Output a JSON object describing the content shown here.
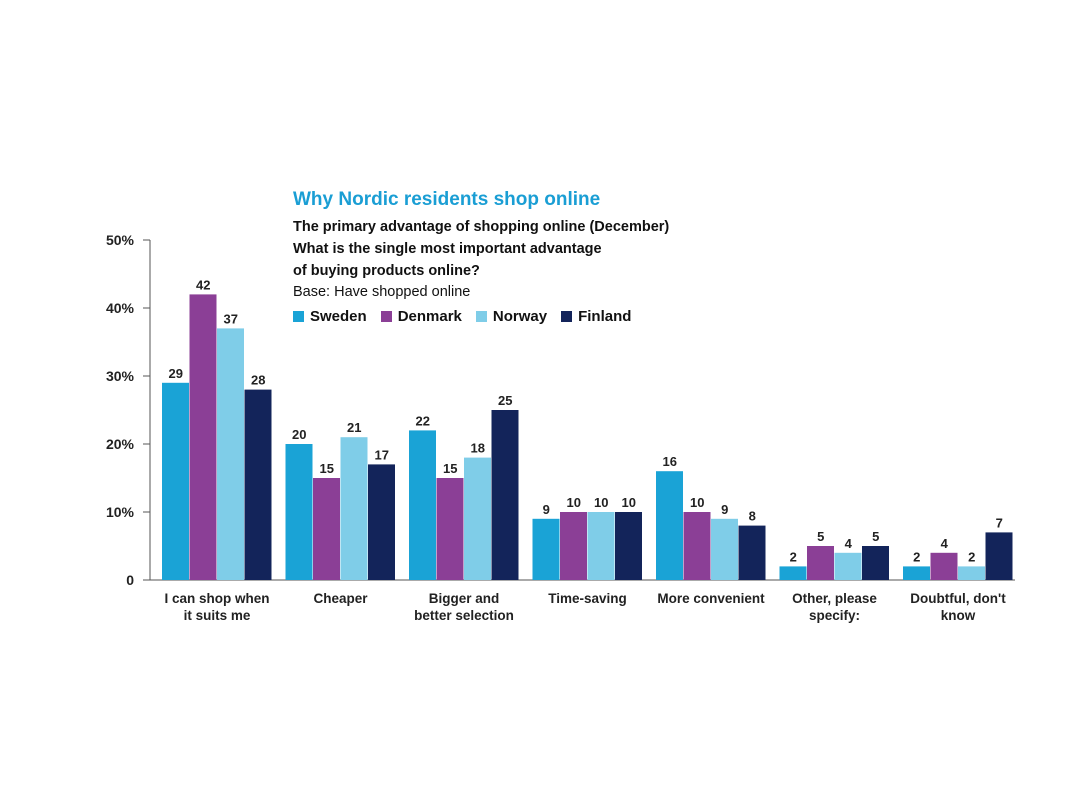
{
  "chart_data": {
    "type": "bar",
    "title": "Why Nordic residents shop online",
    "subtitle_lines": [
      "The primary advantage of shopping online (December)",
      "What is the single most important advantage",
      "of buying products online?"
    ],
    "base_note": "Base: Have shopped online",
    "categories": [
      [
        "I can shop when",
        "it suits me"
      ],
      [
        "Cheaper"
      ],
      [
        "Bigger and",
        "better selection"
      ],
      [
        "Time-saving"
      ],
      [
        "More convenient"
      ],
      [
        "Other, please",
        "specify:"
      ],
      [
        "Doubtful, don't",
        "know"
      ]
    ],
    "series": [
      {
        "name": "Sweden",
        "color": "#1aa3d6",
        "values": [
          29,
          20,
          22,
          9,
          16,
          2,
          2
        ]
      },
      {
        "name": "Denmark",
        "color": "#8b3f96",
        "values": [
          42,
          15,
          15,
          10,
          10,
          5,
          4
        ]
      },
      {
        "name": "Norway",
        "color": "#7fcde8",
        "values": [
          37,
          21,
          18,
          10,
          9,
          4,
          2
        ]
      },
      {
        "name": "Finland",
        "color": "#13245a",
        "values": [
          28,
          17,
          25,
          10,
          8,
          5,
          7
        ]
      }
    ],
    "y_ticks": [
      {
        "value": 0,
        "label": "0"
      },
      {
        "value": 10,
        "label": "10%"
      },
      {
        "value": 20,
        "label": "20%"
      },
      {
        "value": 30,
        "label": "30%"
      },
      {
        "value": 40,
        "label": "40%"
      },
      {
        "value": 50,
        "label": "50%"
      }
    ],
    "ylim": [
      0,
      50
    ],
    "grid": false,
    "legend_placement": "top"
  }
}
